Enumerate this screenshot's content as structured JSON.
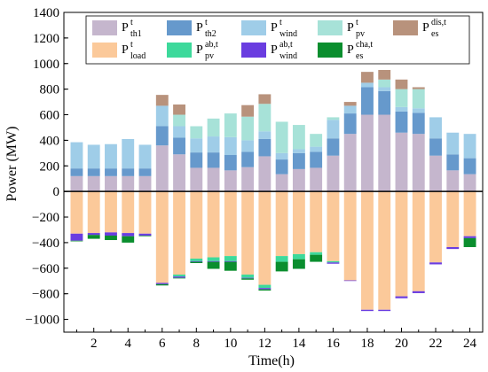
{
  "chart_data": {
    "type": "bar",
    "stacked": true,
    "title": "",
    "xlabel": "Time(h)",
    "ylabel": "Power (MW)",
    "ylim": [
      -1100,
      1400
    ],
    "yticks": [
      -1000,
      -800,
      -600,
      -400,
      -200,
      0,
      200,
      400,
      600,
      800,
      1000,
      1200,
      1400
    ],
    "xticks": [
      2,
      4,
      6,
      8,
      10,
      12,
      14,
      16,
      18,
      20,
      22,
      24
    ],
    "grid": false,
    "legend_position": "top",
    "categories": [
      1,
      2,
      3,
      4,
      5,
      6,
      7,
      8,
      9,
      10,
      11,
      12,
      13,
      14,
      15,
      16,
      17,
      18,
      19,
      20,
      21,
      22,
      23,
      24
    ],
    "positive_series": [
      {
        "key": "p_th1",
        "legend": {
          "base": "P",
          "sup": "t",
          "sub": "th1"
        },
        "color": "#c5b6cd",
        "values": [
          120,
          120,
          120,
          120,
          120,
          360,
          290,
          185,
          185,
          165,
          190,
          275,
          135,
          175,
          185,
          280,
          450,
          600,
          600,
          460,
          450,
          280,
          165,
          135
        ]
      },
      {
        "key": "p_th2",
        "legend": {
          "base": "P",
          "sup": "t",
          "sub": "th2"
        },
        "color": "#6699cc",
        "values": [
          60,
          60,
          60,
          60,
          60,
          150,
          130,
          120,
          120,
          120,
          120,
          135,
          115,
          125,
          125,
          135,
          160,
          215,
          185,
          165,
          165,
          135,
          125,
          125
        ]
      },
      {
        "key": "p_wind",
        "legend": {
          "base": "P",
          "sup": "t",
          "sub": "wind"
        },
        "color": "#9fcde8",
        "values": [
          205,
          185,
          190,
          230,
          185,
          160,
          90,
          110,
          125,
          140,
          90,
          60,
          50,
          30,
          40,
          145,
          60,
          35,
          30,
          35,
          35,
          165,
          170,
          190
        ]
      },
      {
        "key": "p_pv",
        "legend": {
          "base": "P",
          "sup": "t",
          "sub": "pv"
        },
        "color": "#a7e2d8",
        "values": [
          0,
          0,
          0,
          0,
          0,
          0,
          90,
          95,
          140,
          185,
          185,
          215,
          245,
          190,
          100,
          20,
          0,
          0,
          60,
          140,
          150,
          0,
          0,
          0
        ]
      },
      {
        "key": "p_es_dis",
        "legend": {
          "base": "P",
          "sup": "dis,t",
          "sub": "es"
        },
        "color": "#b8927c",
        "values": [
          0,
          0,
          0,
          0,
          0,
          85,
          80,
          0,
          0,
          0,
          90,
          75,
          0,
          0,
          0,
          0,
          30,
          85,
          75,
          75,
          15,
          0,
          0,
          0
        ]
      }
    ],
    "negative_series": [
      {
        "key": "p_load",
        "legend": {
          "base": "P",
          "sup": "t",
          "sub": "load"
        },
        "color": "#fbc99a",
        "values": [
          -330,
          -325,
          -320,
          -325,
          -330,
          -715,
          -650,
          -525,
          -515,
          -505,
          -650,
          -730,
          -505,
          -490,
          -475,
          -545,
          -695,
          -925,
          -925,
          -820,
          -780,
          -555,
          -435,
          -350
        ]
      },
      {
        "key": "p_pv_ab",
        "legend": {
          "base": "P",
          "sup": "ab,t",
          "sub": "pv"
        },
        "color": "#3dd99b",
        "values": [
          0,
          0,
          0,
          0,
          0,
          0,
          -15,
          -20,
          -30,
          -40,
          -25,
          -25,
          -45,
          -40,
          -20,
          -10,
          0,
          0,
          0,
          0,
          0,
          0,
          0,
          0
        ]
      },
      {
        "key": "p_wind_ab",
        "legend": {
          "base": "P",
          "sup": "ab,t",
          "sub": "wind"
        },
        "color": "#6a3de0",
        "values": [
          -55,
          -15,
          -25,
          -25,
          -15,
          -10,
          -10,
          -5,
          -5,
          -5,
          -5,
          -10,
          0,
          0,
          0,
          -10,
          -5,
          -10,
          -10,
          -15,
          -15,
          -15,
          -15,
          -15
        ]
      },
      {
        "key": "p_es_cha",
        "legend": {
          "base": "P",
          "sup": "cha,t",
          "sub": "es"
        },
        "color": "#0a8e2e",
        "values": [
          -5,
          -30,
          -35,
          -50,
          -5,
          -10,
          -5,
          -10,
          -55,
          -70,
          -10,
          -10,
          -75,
          -75,
          -55,
          0,
          0,
          0,
          0,
          0,
          0,
          0,
          0,
          -70
        ]
      }
    ]
  }
}
